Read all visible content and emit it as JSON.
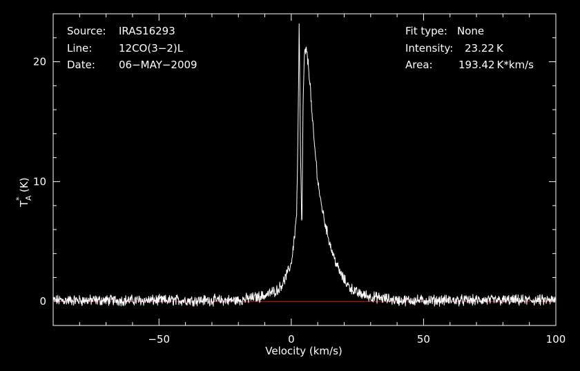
{
  "header": {
    "left": [
      {
        "key": "Source:",
        "value": "IRAS16293"
      },
      {
        "key": "Line:",
        "value": "12CO(3−2)L"
      },
      {
        "key": "Date:",
        "value": "06−MAY−2009"
      }
    ],
    "right": [
      {
        "key": "Fit type:",
        "value": "None"
      },
      {
        "key": "Intensity:",
        "value": "23.22 K"
      },
      {
        "key": "Area:",
        "value": "193.42 K*km/s"
      }
    ]
  },
  "chart_data": {
    "type": "line",
    "xlabel": "Velocity (km/s)",
    "ylabel_main": "T",
    "ylabel_sup": "*",
    "ylabel_sub": "A",
    "ylabel_unit": "(K)",
    "xlim": [
      -90,
      100
    ],
    "ylim": [
      -2,
      24
    ],
    "x_ticks": [
      -50,
      0,
      50,
      100
    ],
    "x_tick_labels": [
      "−50",
      "0",
      "50",
      "100"
    ],
    "y_ticks": [
      0,
      10,
      20
    ],
    "y_tick_labels": [
      "0",
      "10",
      "20"
    ],
    "baseline": 0,
    "colors": {
      "background": "#000000",
      "line": "#ffffff",
      "baseline": "#d01818",
      "frame": "#ffffff"
    },
    "grid": false,
    "series": [
      {
        "x": [
          -90,
          -20,
          -10,
          -5,
          -3,
          -1,
          0,
          1,
          2,
          2.5,
          3,
          3.5,
          4,
          4.5,
          5,
          5.5,
          6,
          7,
          8,
          9,
          10,
          11,
          12,
          13,
          14,
          15,
          16,
          18,
          20,
          22,
          25,
          30,
          40,
          100
        ],
        "y": [
          0.1,
          0.1,
          0.5,
          1.0,
          1.6,
          2.6,
          3.2,
          5.0,
          7.2,
          13.0,
          23.2,
          12.0,
          5.8,
          17.0,
          20.6,
          21.0,
          20.6,
          18.5,
          15.0,
          12.5,
          10.2,
          8.5,
          7.4,
          6.3,
          5.4,
          4.5,
          3.8,
          2.6,
          1.8,
          1.2,
          0.7,
          0.4,
          0.1,
          0.1
        ]
      }
    ]
  }
}
